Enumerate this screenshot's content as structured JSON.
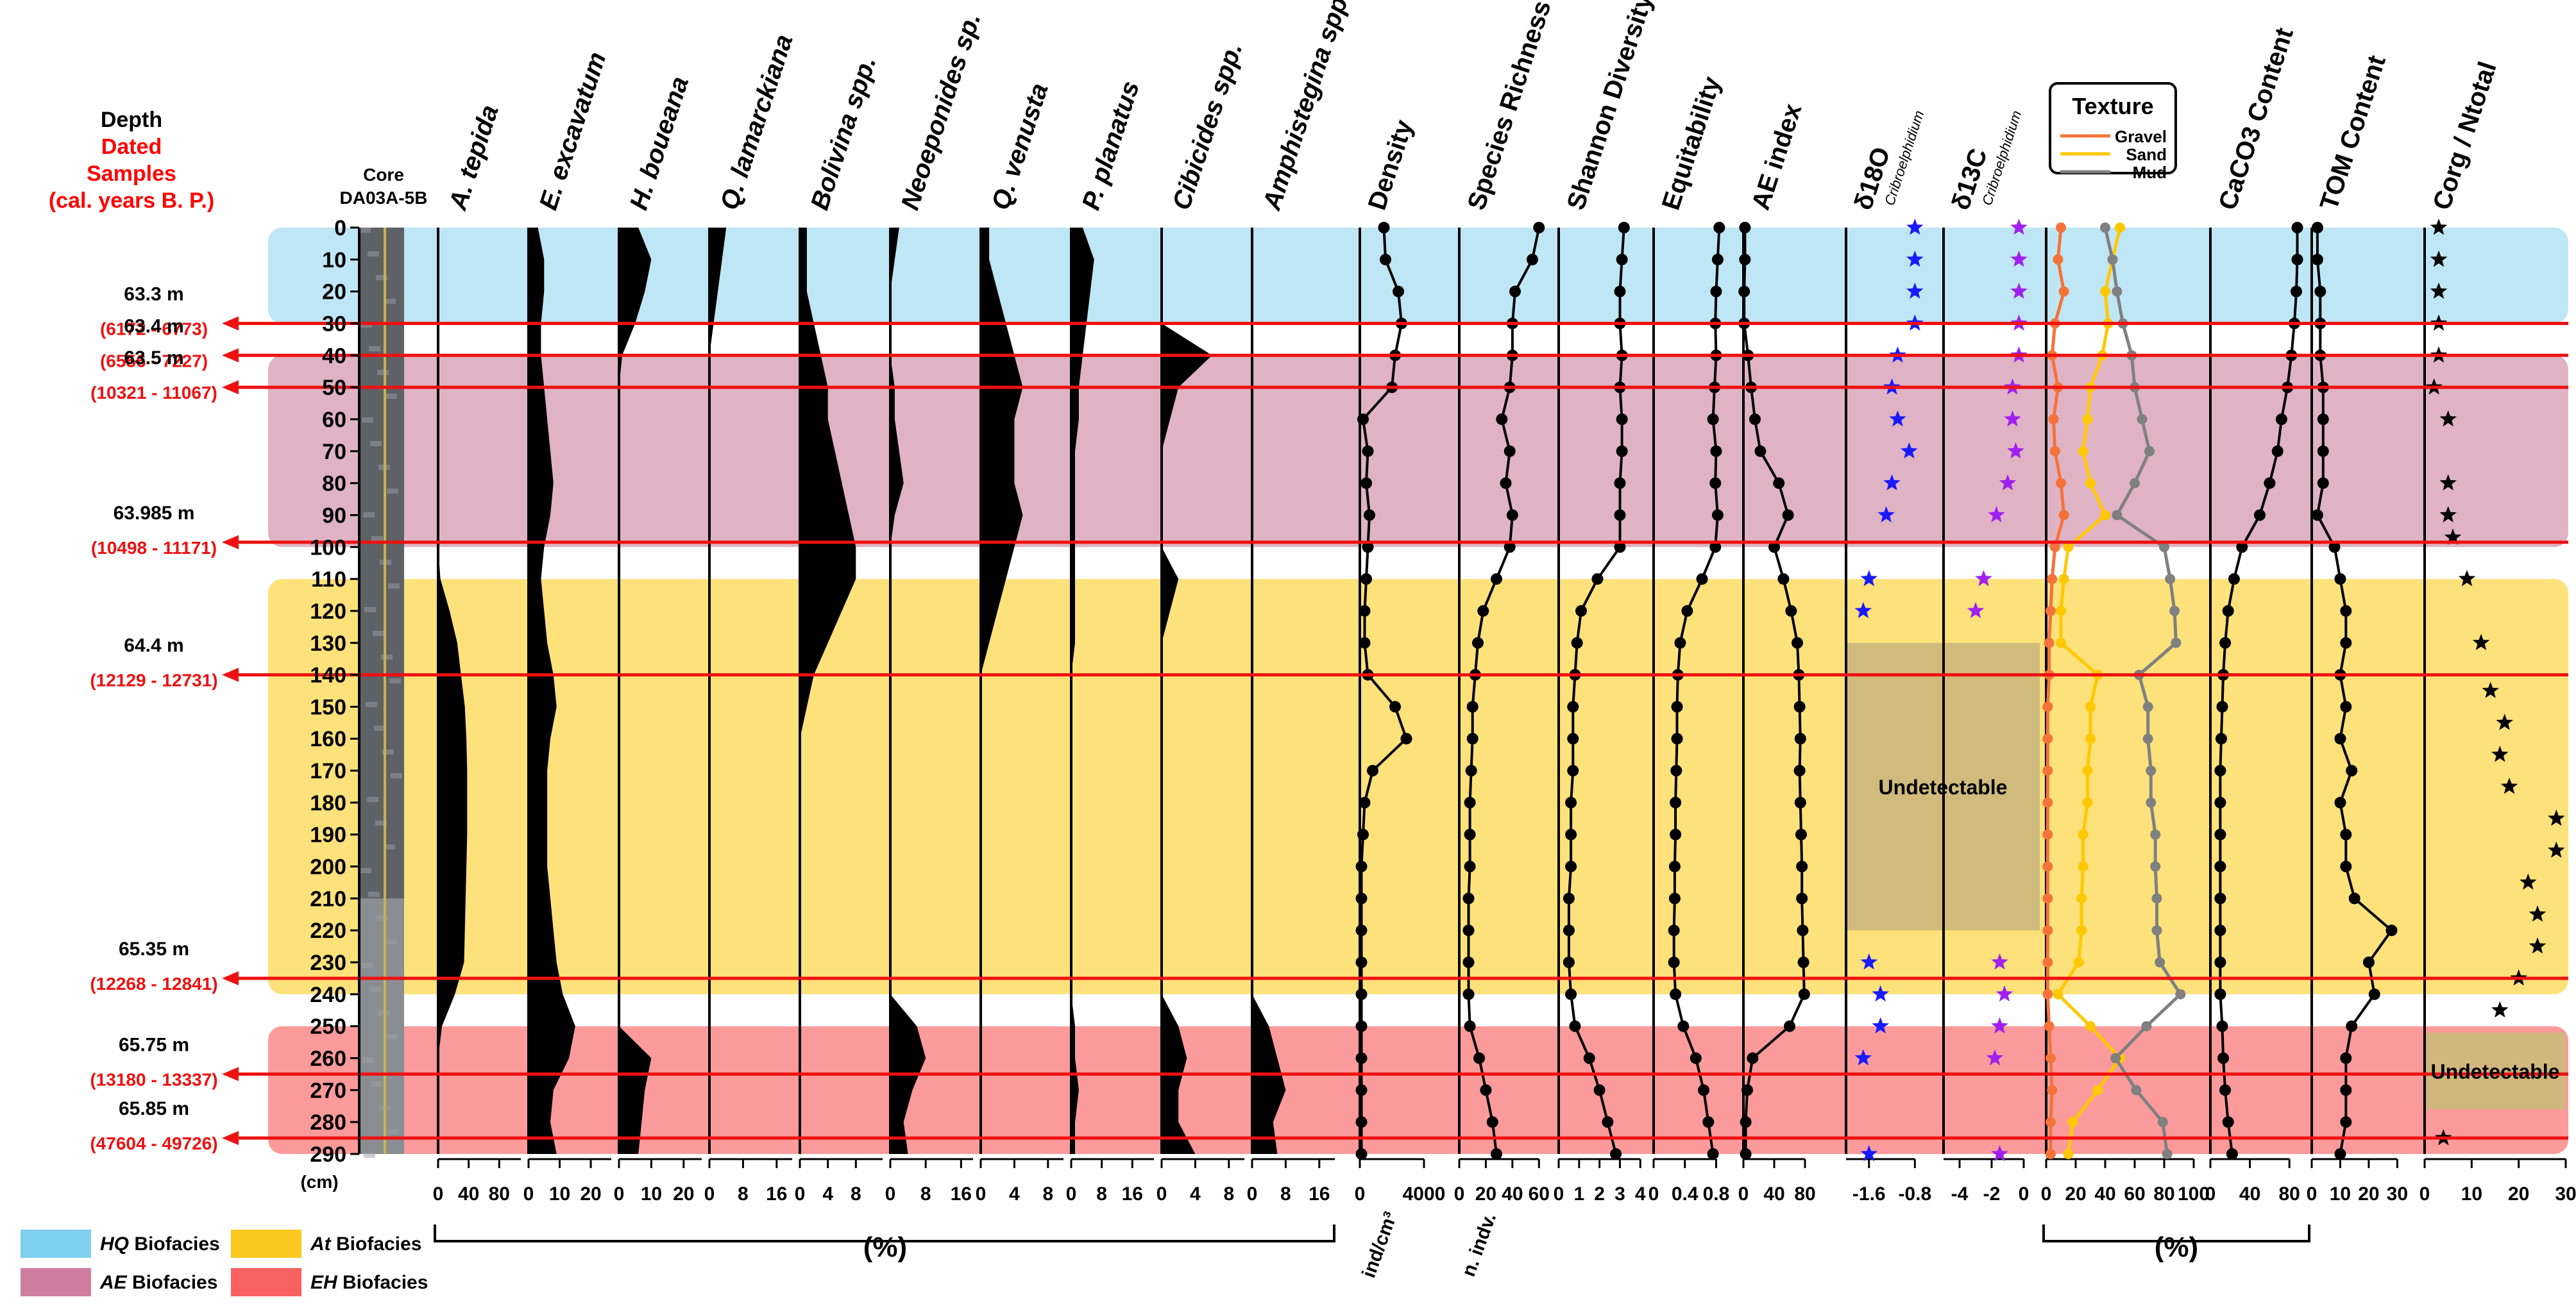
{
  "chart_data": {
    "type": "stratigraphic-panel",
    "title": "",
    "depth_axis": {
      "label": "Depth",
      "unit": "(cm)",
      "range": [
        0,
        290
      ],
      "ticks": [
        0,
        10,
        20,
        30,
        40,
        50,
        60,
        70,
        80,
        90,
        100,
        110,
        120,
        130,
        140,
        150,
        160,
        170,
        180,
        190,
        200,
        210,
        220,
        230,
        240,
        250,
        260,
        270,
        280,
        290
      ]
    },
    "headings": {
      "depth": "Depth",
      "dated": "Dated",
      "samples": "Samples",
      "calyears": "(cal. years B. P.)",
      "core": "Core",
      "core_id": "DA03A-5B",
      "unit": "(cm)"
    },
    "biofacies_bands": [
      {
        "name": "HQ",
        "suffix": "Biofacies",
        "from": 0,
        "to": 30,
        "color": "#bfe6f5"
      },
      {
        "name": "AE",
        "suffix": "Biofacies",
        "from": 40,
        "to": 100,
        "color": "#dfb3c4"
      },
      {
        "name": "At",
        "suffix": "Biofacies",
        "from": 110,
        "to": 240,
        "color": "#fde17a"
      },
      {
        "name": "EH",
        "suffix": "Biofacies",
        "from": 250,
        "to": 290,
        "color": "#fb9a9a"
      }
    ],
    "legend_biofacies": [
      {
        "name": "HQ",
        "suffix": "Biofacies",
        "color": "#7fd0ee"
      },
      {
        "name": "At",
        "suffix": "Biofacies",
        "color": "#fbc91f"
      },
      {
        "name": "AE",
        "suffix": "Biofacies",
        "color": "#d07ea0"
      },
      {
        "name": "EH",
        "suffix": "Biofacies",
        "color": "#f96161"
      }
    ],
    "dated_samples": [
      {
        "depth_label": "63.3 m",
        "age": "(6172 - 6773)",
        "depth": 30
      },
      {
        "depth_label": "63.4 m",
        "age": "(6556 - 7227)",
        "depth": 40
      },
      {
        "depth_label": "63.5 m",
        "age": "(10321 - 11067)",
        "depth": 50
      },
      {
        "depth_label": "63.985 m",
        "age": "(10498 - 11171)",
        "depth": 98.5
      },
      {
        "depth_label": "64.4 m",
        "age": "(12129 - 12731)",
        "depth": 140
      },
      {
        "depth_label": "65.35 m",
        "age": "(12268 - 12841)",
        "depth": 235
      },
      {
        "depth_label": "65.75 m",
        "age": "(13180 - 13337)",
        "depth": 265
      },
      {
        "depth_label": "65.85 m",
        "age": "(47604 - 49726)",
        "depth": 285
      }
    ],
    "species_axis_label": "(%)",
    "species": [
      {
        "name": "A. tepida",
        "ticks": [
          "0",
          "40",
          "80"
        ],
        "max": 110,
        "values": [
          0,
          0,
          0,
          0,
          0,
          0,
          0,
          0,
          0,
          0,
          0,
          3,
          15,
          25,
          30,
          35,
          37,
          38,
          38,
          38,
          37,
          36,
          35,
          34,
          22,
          5,
          0,
          0,
          0,
          0
        ]
      },
      {
        "name": "E. excavatum",
        "ticks": [
          "0",
          "10",
          "20"
        ],
        "max": 27,
        "values": [
          3,
          5,
          5,
          4,
          4,
          5,
          6,
          7,
          8,
          7,
          5,
          4,
          5,
          6,
          8,
          9,
          7,
          6,
          6,
          6,
          6,
          7,
          8,
          9,
          11,
          15,
          13,
          8,
          7,
          9
        ]
      },
      {
        "name": "H. boueana",
        "ticks": [
          "0",
          "10",
          "20"
        ],
        "max": 26,
        "values": [
          6,
          10,
          8,
          5,
          1,
          0,
          0,
          0,
          0,
          0,
          0,
          0,
          0,
          0,
          0,
          0,
          0,
          0,
          0,
          0,
          0,
          0,
          0,
          0,
          0,
          0,
          10,
          8,
          7,
          6
        ]
      },
      {
        "name": "Q. lamarckiana",
        "ticks": [
          "0",
          "8",
          "16"
        ],
        "max": 20,
        "values": [
          4,
          3,
          2,
          1,
          0,
          0,
          0,
          0,
          0,
          0,
          0,
          0,
          0,
          0,
          0,
          0,
          0,
          0,
          0,
          0,
          0,
          0,
          0,
          0,
          0,
          0,
          0,
          0,
          0,
          0
        ]
      },
      {
        "name": "Bolivina spp.",
        "ticks": [
          "0",
          "4",
          "8"
        ],
        "max": 12,
        "values": [
          1,
          1,
          1,
          2,
          3,
          4,
          4,
          5,
          6,
          7,
          8,
          8,
          6,
          4,
          2,
          1,
          0,
          0,
          0,
          0,
          0,
          0,
          0,
          0,
          0,
          0,
          0,
          0,
          0,
          0
        ]
      },
      {
        "name": "Neoeponides sp.",
        "ticks": [
          "0",
          "8",
          "16"
        ],
        "max": 19,
        "values": [
          2,
          1,
          0,
          0,
          0,
          1,
          1,
          2,
          3,
          1,
          0,
          0,
          0,
          0,
          0,
          0,
          0,
          0,
          0,
          0,
          0,
          0,
          0,
          0,
          0,
          6,
          8,
          5,
          3,
          4
        ]
      },
      {
        "name": "Q. venusta",
        "ticks": [
          "0",
          "4",
          "8"
        ],
        "max": 10,
        "values": [
          1,
          1,
          2,
          3,
          4,
          5,
          4,
          4,
          4,
          5,
          4,
          3,
          2,
          1,
          0,
          0,
          0,
          0,
          0,
          0,
          0,
          0,
          0,
          0,
          0,
          0,
          0,
          0,
          0,
          0
        ]
      },
      {
        "name": "P. planatus",
        "ticks": [
          "0",
          "8",
          "16"
        ],
        "max": 22,
        "values": [
          3,
          6,
          5,
          4,
          3,
          2,
          2,
          1,
          1,
          1,
          1,
          1,
          1,
          1,
          0,
          0,
          0,
          0,
          0,
          0,
          0,
          0,
          0,
          0,
          0,
          1,
          1,
          2,
          1,
          1
        ]
      },
      {
        "name": "Cibicides spp.",
        "ticks": [
          "0",
          "4",
          "8"
        ],
        "max": 10,
        "values": [
          0,
          0,
          0,
          0,
          6,
          2,
          1,
          0,
          0,
          0,
          0,
          2,
          1,
          0,
          0,
          0,
          0,
          0,
          0,
          0,
          0,
          0,
          0,
          0,
          0,
          2,
          3,
          2,
          2,
          4
        ]
      },
      {
        "name": "Amphistegina spp.",
        "ticks": [
          "0",
          "8",
          "16"
        ],
        "max": 20,
        "values": [
          0,
          0,
          0,
          0,
          0,
          0,
          0,
          0,
          0,
          0,
          0,
          0,
          0,
          0,
          0,
          0,
          0,
          0,
          0,
          0,
          0,
          0,
          0,
          0,
          0,
          4,
          6,
          8,
          5,
          6
        ]
      }
    ],
    "line_panels": [
      {
        "name": "Density",
        "ticks": [
          "0",
          "4000"
        ],
        "tick_values": [
          0,
          4000
        ],
        "range": [
          0,
          6000
        ],
        "unit": "ind/cm³",
        "style": "line",
        "color": "#000000",
        "values": [
          1500,
          1600,
          2400,
          2600,
          2200,
          2000,
          200,
          500,
          400,
          600,
          500,
          400,
          300,
          300,
          500,
          2200,
          2900,
          800,
          300,
          200,
          100,
          100,
          100,
          100,
          100,
          100,
          100,
          100,
          100,
          100
        ]
      },
      {
        "name": "Species Richness",
        "ticks": [
          "0",
          "20",
          "40",
          "60"
        ],
        "tick_values": [
          0,
          20,
          40,
          60
        ],
        "range": [
          0,
          70
        ],
        "unit": "n. indv.",
        "style": "line",
        "color": "#000000",
        "values": [
          60,
          55,
          42,
          40,
          40,
          38,
          32,
          38,
          35,
          40,
          38,
          28,
          18,
          14,
          12,
          10,
          10,
          9,
          8,
          8,
          8,
          7,
          7,
          7,
          7,
          8,
          15,
          20,
          25,
          28
        ]
      },
      {
        "name": "Shannon Diversity",
        "ticks": [
          "0",
          "1",
          "2",
          "3",
          "4"
        ],
        "tick_values": [
          0,
          1,
          2,
          3,
          4
        ],
        "range": [
          0,
          4.4
        ],
        "style": "line",
        "color": "#000000",
        "values": [
          3.2,
          3.1,
          3.0,
          3.0,
          3.1,
          3.0,
          3.1,
          3.1,
          3.0,
          3.0,
          3.0,
          1.9,
          1.1,
          0.9,
          0.8,
          0.7,
          0.7,
          0.7,
          0.6,
          0.6,
          0.6,
          0.5,
          0.5,
          0.5,
          0.6,
          0.8,
          1.5,
          2.0,
          2.4,
          2.8
        ]
      },
      {
        "name": "Equitability",
        "ticks": [
          "0",
          "0.4",
          "0.8"
        ],
        "tick_values": [
          0,
          0.4,
          0.8
        ],
        "range": [
          0,
          1.1
        ],
        "style": "line",
        "color": "#000000",
        "values": [
          0.84,
          0.82,
          0.8,
          0.79,
          0.8,
          0.78,
          0.76,
          0.8,
          0.79,
          0.82,
          0.79,
          0.62,
          0.43,
          0.34,
          0.31,
          0.3,
          0.3,
          0.29,
          0.28,
          0.28,
          0.27,
          0.27,
          0.26,
          0.26,
          0.28,
          0.38,
          0.54,
          0.64,
          0.7,
          0.76
        ]
      },
      {
        "name": "AE index",
        "ticks": [
          "0",
          "40",
          "80"
        ],
        "tick_values": [
          0,
          40,
          80
        ],
        "range": [
          0,
          120
        ],
        "style": "line",
        "color": "#000000",
        "values": [
          2,
          2,
          1,
          1,
          6,
          10,
          15,
          22,
          46,
          58,
          40,
          52,
          62,
          70,
          72,
          73,
          74,
          73,
          74,
          75,
          76,
          76,
          77,
          78,
          79,
          60,
          12,
          5,
          3,
          3
        ]
      },
      {
        "name": "δ18O",
        "sub": "Cribroelphidium",
        "ticks": [
          "-1.6",
          "-0.8"
        ],
        "tick_values": [
          -1.6,
          -0.8
        ],
        "range": [
          -2.0,
          -0.3
        ],
        "style": "star",
        "color": "#1a1aff",
        "depths": [
          0,
          10,
          20,
          30,
          40,
          50,
          60,
          70,
          80,
          90,
          110,
          120,
          230,
          240,
          250,
          260,
          290
        ],
        "values": [
          -0.8,
          -0.8,
          -0.8,
          -0.8,
          -1.1,
          -1.2,
          -1.1,
          -0.9,
          -1.2,
          -1.3,
          -1.6,
          -1.7,
          -1.6,
          -1.4,
          -1.4,
          -1.7,
          -1.6
        ]
      },
      {
        "name": "δ13C",
        "sub": "Cribroelphidium",
        "ticks": [
          "-4",
          "-2",
          "0"
        ],
        "tick_values": [
          -4,
          -2,
          0
        ],
        "range": [
          -5,
          1
        ],
        "style": "star",
        "color": "#a020f0",
        "depths": [
          0,
          10,
          20,
          30,
          40,
          50,
          60,
          70,
          80,
          90,
          110,
          120,
          230,
          240,
          250,
          260,
          290
        ],
        "values": [
          -0.3,
          -0.3,
          -0.3,
          -0.3,
          -0.3,
          -0.7,
          -0.7,
          -0.5,
          -1.0,
          -1.7,
          -2.5,
          -3.0,
          -1.5,
          -1.2,
          -1.5,
          -1.8,
          -1.5
        ]
      },
      {
        "name": "Texture",
        "ticks": [
          "0",
          "20",
          "40",
          "60",
          "80",
          "100"
        ],
        "tick_values": [
          0,
          20,
          40,
          60,
          80,
          100
        ],
        "range": [
          0,
          100
        ],
        "style": "multi",
        "series": [
          {
            "name": "Gravel",
            "color": "#f4733a",
            "values": [
              10,
              8,
              12,
              6,
              4,
              8,
              5,
              6,
              10,
              12,
              6,
              4,
              3,
              2,
              2,
              1,
              1,
              1,
              1,
              1,
              1,
              1,
              1,
              1,
              1,
              2,
              3,
              4,
              3,
              3
            ]
          },
          {
            "name": "Sand",
            "color": "#ffc800",
            "values": [
              50,
              45,
              40,
              42,
              38,
              30,
              28,
              25,
              30,
              40,
              15,
              12,
              10,
              10,
              35,
              30,
              30,
              28,
              28,
              25,
              25,
              24,
              24,
              22,
              8,
              30,
              50,
              35,
              18,
              15
            ]
          },
          {
            "name": "Mud",
            "color": "#808080",
            "values": [
              40,
              45,
              48,
              52,
              58,
              60,
              65,
              70,
              60,
              48,
              80,
              84,
              87,
              88,
              63,
              69,
              69,
              71,
              71,
              74,
              74,
              75,
              75,
              77,
              91,
              68,
              47,
              61,
              79,
              82
            ]
          }
        ]
      },
      {
        "name": "CaCO3 Content",
        "ticks": [
          "0",
          "40",
          "80"
        ],
        "tick_values": [
          0,
          40,
          80
        ],
        "range": [
          0,
          100
        ],
        "style": "line",
        "color": "#000000",
        "values": [
          88,
          88,
          87,
          85,
          82,
          78,
          72,
          68,
          60,
          50,
          32,
          24,
          18,
          15,
          13,
          12,
          11,
          10,
          10,
          10,
          10,
          10,
          10,
          10,
          10,
          12,
          13,
          15,
          18,
          22
        ]
      },
      {
        "name": "TOM Content",
        "ticks": [
          "0",
          "10",
          "20",
          "30"
        ],
        "tick_values": [
          0,
          10,
          20,
          30
        ],
        "range": [
          0,
          36
        ],
        "style": "line",
        "color": "#000000",
        "values": [
          2,
          2,
          3,
          3,
          3,
          4,
          4,
          4,
          4,
          2,
          8,
          10,
          12,
          12,
          10,
          12,
          10,
          14,
          10,
          12,
          12,
          15,
          28,
          20,
          22,
          14,
          12,
          12,
          12,
          10
        ]
      },
      {
        "name": "Corg / Ntotal",
        "ticks": [
          "0",
          "10",
          "20",
          "30"
        ],
        "tick_values": [
          0,
          10,
          20,
          30
        ],
        "range": [
          0,
          30
        ],
        "style": "star",
        "color": "#000000",
        "depths": [
          0,
          10,
          20,
          30,
          40,
          50,
          60,
          80,
          90,
          97,
          110,
          130,
          145,
          155,
          165,
          175,
          185,
          195,
          205,
          215,
          225,
          235,
          245,
          285
        ],
        "values": [
          3,
          3,
          3,
          3,
          3,
          2,
          5,
          5,
          5,
          6,
          9,
          12,
          14,
          17,
          16,
          18,
          28,
          28,
          22,
          24,
          24,
          20,
          16,
          4
        ]
      }
    ],
    "undetectable": [
      {
        "text": "Undetectable",
        "panels": [
          "δ18O",
          "δ13C"
        ],
        "from": 130,
        "to": 220
      },
      {
        "text": "Undetectable",
        "panels": [
          "Corg / Ntotal"
        ],
        "from": 252,
        "to": 276
      }
    ]
  }
}
